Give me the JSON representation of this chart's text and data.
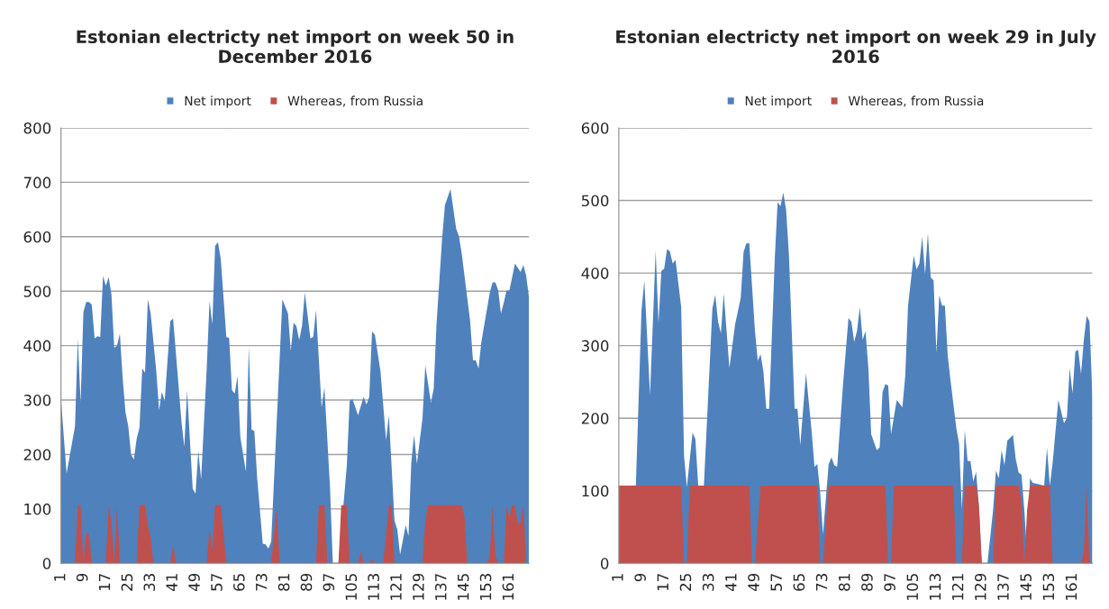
{
  "chart_data": [
    {
      "type": "area",
      "title": "Estonian electricty net import on week 50 in\nDecember 2016",
      "xlim": [
        1,
        168
      ],
      "xticks": [
        1,
        9,
        17,
        25,
        33,
        41,
        49,
        57,
        65,
        73,
        81,
        89,
        97,
        105,
        113,
        121,
        129,
        137,
        145,
        153,
        161
      ],
      "ylim": [
        0,
        800
      ],
      "yticks": [
        0,
        100,
        200,
        300,
        400,
        500,
        600,
        700,
        800
      ],
      "grid": "y",
      "legend": "top",
      "series": [
        {
          "name": "Net import",
          "color": "#4f81bd",
          "x": [
            1,
            3,
            6,
            7,
            8,
            9,
            10,
            11,
            12,
            13,
            14,
            15,
            16,
            17,
            18,
            19,
            20,
            21,
            22,
            23,
            24,
            25,
            26,
            27,
            28,
            29,
            30,
            31,
            32,
            33,
            35,
            36,
            37,
            38,
            40,
            41,
            44,
            45,
            46,
            48,
            49,
            50,
            51,
            53,
            54,
            55,
            56,
            57,
            58,
            60,
            61,
            62,
            63,
            64,
            65,
            66,
            67,
            68,
            69,
            70,
            71,
            73,
            74,
            75,
            76,
            80,
            82,
            83,
            84,
            85,
            86,
            87,
            88,
            90,
            91,
            92,
            94,
            95,
            97,
            98,
            100,
            103,
            104,
            105,
            107,
            109,
            110,
            111,
            112,
            113,
            115,
            117,
            118,
            120,
            121,
            122,
            124,
            125,
            126,
            127,
            128,
            130,
            131,
            133,
            134,
            135,
            137,
            138,
            140,
            142,
            143,
            144,
            147,
            148,
            149,
            150,
            151,
            154,
            155,
            156,
            157,
            158,
            159,
            160,
            161,
            163,
            165,
            166,
            167,
            168
          ],
          "values": [
            301,
            165,
            252,
            413,
            295,
            462,
            480,
            480,
            475,
            413,
            417,
            416,
            528,
            510,
            526,
            494,
            396,
            400,
            422,
            341,
            278,
            252,
            200,
            191,
            229,
            249,
            358,
            350,
            485,
            459,
            353,
            281,
            315,
            298,
            445,
            450,
            260,
            214,
            318,
            137,
            128,
            206,
            154,
            358,
            482,
            439,
            583,
            590,
            560,
            416,
            414,
            318,
            312,
            344,
            232,
            200,
            168,
            399,
            246,
            243,
            157,
            36,
            35,
            27,
            40,
            485,
            459,
            390,
            442,
            436,
            410,
            436,
            498,
            413,
            416,
            465,
            286,
            323,
            139,
            0,
            0,
            180,
            298,
            302,
            272,
            306,
            292,
            306,
            426,
            420,
            353,
            226,
            272,
            79,
            62,
            16,
            70,
            50,
            185,
            236,
            183,
            266,
            364,
            295,
            321,
            439,
            597,
            658,
            688,
            615,
            601,
            569,
            445,
            373,
            373,
            358,
            407,
            497,
            516,
            516,
            502,
            459,
            479,
            501,
            501,
            551,
            535,
            548,
            528,
            488
          ]
        },
        {
          "name": "Whereas, from Russia",
          "color": "#c0504d",
          "x": [
            6,
            7,
            8,
            9,
            10,
            11,
            12,
            17,
            18,
            19,
            20,
            21,
            22,
            28,
            29,
            31,
            32,
            33,
            34,
            40,
            41,
            42,
            53,
            54,
            55,
            56,
            58,
            60,
            76,
            78,
            79,
            92,
            93,
            95,
            96,
            100,
            101,
            103,
            104,
            107,
            108,
            109,
            111,
            112,
            113,
            116,
            118,
            119,
            120,
            130,
            131,
            132,
            144,
            145,
            146,
            153,
            154,
            155,
            156,
            157,
            159,
            160,
            161,
            162,
            163,
            164,
            165,
            166,
            167
          ],
          "values": [
            0,
            107,
            107,
            0,
            56,
            53,
            0,
            0,
            105,
            76,
            0,
            105,
            0,
            0,
            107,
            107,
            70,
            47,
            0,
            0,
            33,
            0,
            0,
            65,
            24,
            107,
            107,
            0,
            0,
            104,
            0,
            0,
            107,
            107,
            0,
            0,
            107,
            107,
            0,
            0,
            21,
            0,
            0,
            7,
            0,
            0,
            107,
            107,
            0,
            0,
            79,
            107,
            107,
            85,
            0,
            0,
            13,
            107,
            13,
            0,
            0,
            105,
            85,
            107,
            107,
            73,
            76,
            107,
            0
          ]
        }
      ]
    },
    {
      "type": "area",
      "title": "Estonian electricty net import on week 29 in July\n2016",
      "xlim": [
        1,
        168
      ],
      "xticks": [
        1,
        9,
        17,
        25,
        33,
        41,
        49,
        57,
        65,
        73,
        81,
        89,
        97,
        105,
        113,
        121,
        129,
        137,
        145,
        153,
        161
      ],
      "ylim": [
        0,
        600
      ],
      "yticks": [
        0,
        100,
        200,
        300,
        400,
        500,
        600
      ],
      "grid": "y",
      "legend": "top",
      "series": [
        {
          "name": "Net import",
          "color": "#4f81bd",
          "x": [
            1,
            7,
            9,
            10,
            12,
            14,
            15,
            16,
            17,
            18,
            19,
            20,
            21,
            23,
            24,
            25,
            27,
            28,
            29,
            31,
            34,
            35,
            36,
            37,
            38,
            40,
            42,
            44,
            45,
            46,
            47,
            49,
            50,
            51,
            52,
            53,
            54,
            56,
            57,
            58,
            59,
            60,
            61,
            63,
            64,
            65,
            67,
            69,
            70,
            71,
            72,
            73,
            75,
            76,
            77,
            78,
            80,
            82,
            83,
            84,
            85,
            86,
            87,
            88,
            89,
            90,
            92,
            93,
            94,
            95,
            96,
            97,
            99,
            101,
            102,
            103,
            105,
            106,
            107,
            108,
            109,
            110,
            111,
            112,
            113,
            114,
            115,
            116,
            117,
            118,
            120,
            121,
            122,
            123,
            124,
            125,
            126,
            127,
            128,
            129,
            131,
            133,
            134,
            135,
            136,
            137,
            138,
            140,
            141,
            142,
            143,
            144,
            145,
            146,
            147,
            151,
            152,
            153,
            154,
            156,
            158,
            159,
            160,
            161,
            162,
            163,
            164,
            165,
            166,
            167,
            168
          ],
          "values": [
            107,
            107,
            349,
            390,
            232,
            431,
            331,
            403,
            406,
            433,
            430,
            413,
            418,
            353,
            148,
            105,
            180,
            171,
            107,
            107,
            351,
            370,
            333,
            317,
            372,
            269,
            329,
            366,
            429,
            441,
            441,
            321,
            279,
            288,
            264,
            213,
            213,
            420,
            498,
            492,
            511,
            487,
            424,
            213,
            213,
            163,
            262,
            182,
            133,
            137,
            98,
            40,
            137,
            146,
            135,
            133,
            243,
            338,
            333,
            305,
            320,
            353,
            308,
            320,
            269,
            178,
            156,
            160,
            236,
            247,
            245,
            178,
            225,
            215,
            258,
            355,
            424,
            405,
            413,
            450,
            398,
            455,
            394,
            390,
            290,
            369,
            355,
            355,
            286,
            251,
            187,
            165,
            74,
            184,
            141,
            141,
            113,
            126,
            79,
            0,
            0,
            74,
            128,
            117,
            156,
            135,
            169,
            177,
            143,
            125,
            122,
            74,
            10,
            117,
            111,
            107,
            159,
            107,
            139,
            225,
            193,
            200,
            269,
            234,
            292,
            294,
            261,
            308,
            341,
            333,
            230
          ]
        },
        {
          "name": "Whereas, from Russia",
          "color": "#c0504d",
          "x": [
            1,
            23,
            24,
            25,
            26,
            47,
            48,
            49,
            51,
            71,
            72,
            73,
            75,
            95,
            96,
            97,
            98,
            119,
            120,
            122,
            123,
            127,
            128,
            129,
            133,
            134,
            142,
            143,
            144,
            145,
            146,
            153,
            154,
            164,
            165,
            166,
            167,
            168
          ],
          "values": [
            107,
            107,
            0,
            0,
            107,
            107,
            0,
            0,
            107,
            107,
            0,
            0,
            107,
            107,
            0,
            0,
            107,
            107,
            0,
            0,
            107,
            107,
            79,
            0,
            0,
            107,
            107,
            87,
            0,
            74,
            107,
            107,
            0,
            0,
            16,
            105,
            0,
            0
          ]
        }
      ]
    }
  ]
}
